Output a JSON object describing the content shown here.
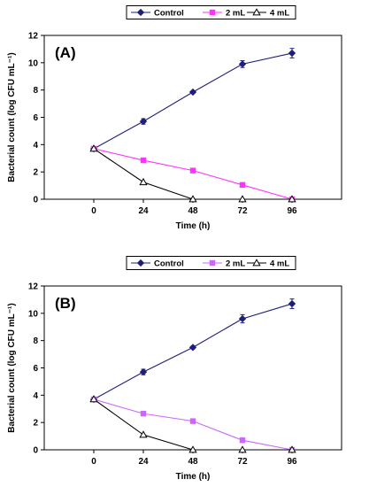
{
  "chart_data": [
    {
      "type": "line",
      "panel_label": "(A)",
      "xlabel": "Time (h)",
      "ylabel": "Bacterial count (log CFU mL⁻¹)",
      "x": [
        0,
        24,
        48,
        72,
        96
      ],
      "xlim": [
        -24,
        120
      ],
      "ylim": [
        0,
        12
      ],
      "yticks": [
        0,
        2,
        4,
        6,
        8,
        10,
        12
      ],
      "grid": false,
      "legend_position": "top-center",
      "series": [
        {
          "name": "Control",
          "color": "#1f1f7a",
          "marker": "diamond",
          "values": [
            3.7,
            5.7,
            7.85,
            9.9,
            10.7
          ],
          "errors": [
            0.1,
            0.2,
            0.1,
            0.25,
            0.35
          ]
        },
        {
          "name": "2 mL",
          "color": "#ff33ff",
          "marker": "square",
          "values": [
            3.7,
            2.85,
            2.1,
            1.05,
            0.0
          ],
          "errors": [
            0.05,
            0.05,
            0.05,
            0.05,
            0.05
          ]
        },
        {
          "name": "4 mL",
          "color": "#000000",
          "marker": "triangle-open",
          "values": [
            3.7,
            1.25,
            0.0,
            0.0,
            0.0
          ],
          "errors": [
            0,
            0,
            0,
            0,
            0
          ]
        }
      ]
    },
    {
      "type": "line",
      "panel_label": "(B)",
      "xlabel": "Time (h)",
      "ylabel": "Bacterial count (log CFU mL⁻¹)",
      "x": [
        0,
        24,
        48,
        72,
        96
      ],
      "xlim": [
        -24,
        120
      ],
      "ylim": [
        0,
        12
      ],
      "yticks": [
        0,
        2,
        4,
        6,
        8,
        10,
        12
      ],
      "grid": false,
      "legend_position": "top-center",
      "series": [
        {
          "name": "Control",
          "color": "#1f1f7a",
          "marker": "diamond",
          "values": [
            3.7,
            5.7,
            7.5,
            9.6,
            10.7
          ],
          "errors": [
            0.1,
            0.2,
            0.1,
            0.3,
            0.35
          ]
        },
        {
          "name": "2 mL",
          "color": "#cc66ff",
          "marker": "square",
          "values": [
            3.7,
            2.65,
            2.1,
            0.7,
            0.0
          ],
          "errors": [
            0.1,
            0.15,
            0.15,
            0.1,
            0.05
          ]
        },
        {
          "name": "4 mL",
          "color": "#000000",
          "marker": "triangle-open",
          "values": [
            3.7,
            1.1,
            0.0,
            0.0,
            0.0
          ],
          "errors": [
            0,
            0,
            0,
            0,
            0
          ]
        }
      ]
    }
  ]
}
